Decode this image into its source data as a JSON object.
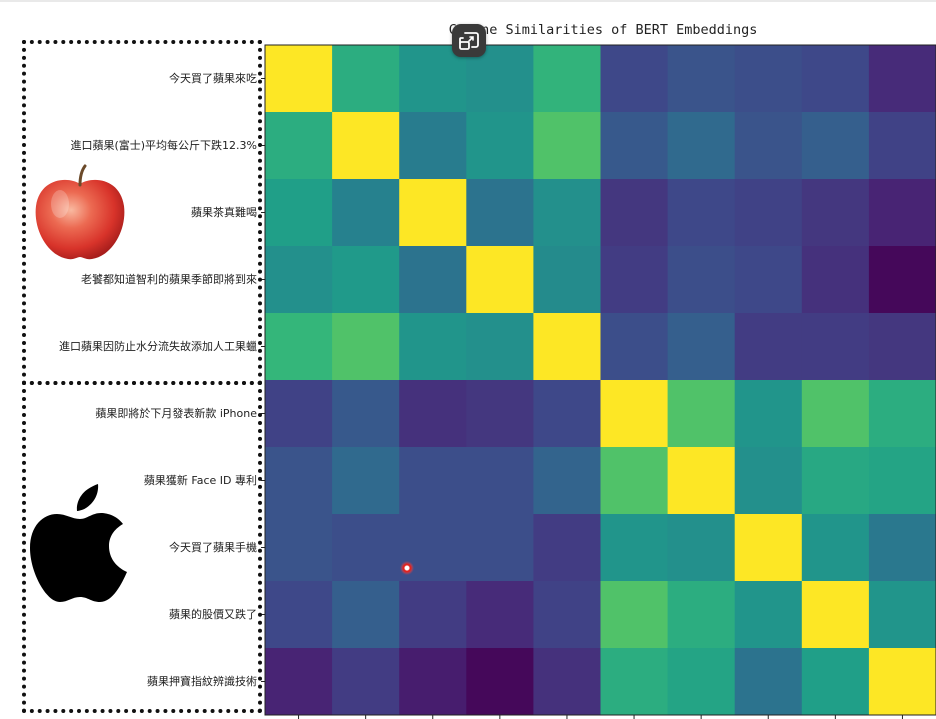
{
  "colors": {
    "viridis": [
      "#440154",
      "#482878",
      "#3e4989",
      "#31688e",
      "#26828e",
      "#1f9e89",
      "#35b779",
      "#6ece58",
      "#b5de2b",
      "#fde725"
    ],
    "group_border": "#111111",
    "pip_button_bg": "#3a3a3a",
    "cursor": "#e0231f"
  },
  "icons": {
    "pip": "picture-in-picture-icon",
    "fruit": "red-apple-fruit-icon",
    "logo": "apple-logo-icon"
  },
  "chart_data": {
    "type": "heatmap",
    "title": "Cosine Similarities of BERT Embeddings",
    "xlabel": "",
    "ylabel": "",
    "rows": [
      "今天買了蘋果來吃",
      "進口蘋果(富士)平均每公斤下跌12.3%",
      "蘋果茶真難喝",
      "老饕都知道智利的蘋果季節即將到來",
      "進口蘋果因防止水分流失故添加人工果蠟",
      "蘋果即將於下月發表新款 iPhone",
      "蘋果獲新 Face ID 專利",
      "今天買了蘋果手機",
      "蘋果的股價又跌了",
      "蘋果押寶指紋辨識技術"
    ],
    "columns": [],
    "colormap": "viridis",
    "value_range": [
      0,
      1
    ],
    "values": [
      [
        1.0,
        0.62,
        0.52,
        0.5,
        0.65,
        0.22,
        0.26,
        0.24,
        0.22,
        0.12
      ],
      [
        0.62,
        1.0,
        0.42,
        0.52,
        0.72,
        0.28,
        0.34,
        0.26,
        0.3,
        0.2
      ],
      [
        0.56,
        0.44,
        1.0,
        0.38,
        0.5,
        0.16,
        0.22,
        0.2,
        0.16,
        0.1
      ],
      [
        0.5,
        0.54,
        0.38,
        1.0,
        0.48,
        0.18,
        0.24,
        0.22,
        0.14,
        0.02
      ],
      [
        0.66,
        0.72,
        0.52,
        0.5,
        1.0,
        0.24,
        0.3,
        0.18,
        0.18,
        0.16
      ],
      [
        0.2,
        0.28,
        0.14,
        0.16,
        0.22,
        1.0,
        0.72,
        0.52,
        0.72,
        0.62
      ],
      [
        0.26,
        0.34,
        0.24,
        0.24,
        0.32,
        0.72,
        1.0,
        0.5,
        0.6,
        0.58
      ],
      [
        0.26,
        0.24,
        0.24,
        0.24,
        0.18,
        0.52,
        0.5,
        1.0,
        0.52,
        0.4
      ],
      [
        0.22,
        0.3,
        0.18,
        0.12,
        0.2,
        0.72,
        0.62,
        0.52,
        1.0,
        0.52
      ],
      [
        0.1,
        0.18,
        0.08,
        0.02,
        0.14,
        0.62,
        0.58,
        0.38,
        0.56,
        1.0
      ]
    ],
    "grid": false,
    "legend": "none"
  }
}
